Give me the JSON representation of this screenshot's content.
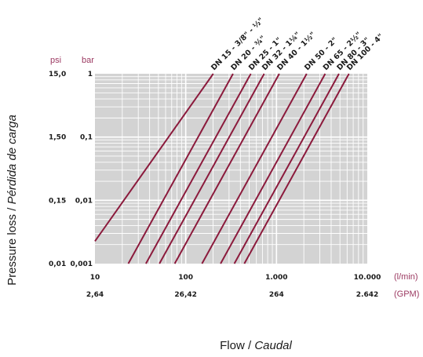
{
  "chart_data": {
    "type": "line",
    "x_scale": "log",
    "y_scale": "log",
    "xlim": [
      10,
      10000
    ],
    "ylim": [
      0.001,
      1
    ],
    "grid": true,
    "xlabel": "Flow",
    "xlabel_italic": "Caudal",
    "ylabel": "Pressure loss",
    "ylabel_italic": "Pérdida de carga",
    "x_unit_primary": "(l/min)",
    "x_unit_secondary": "(GPM)",
    "y_unit_psi": "psi",
    "y_unit_bar": "bar",
    "x_ticks": [
      {
        "value": 10,
        "label": "10",
        "label2": "2,64"
      },
      {
        "value": 100,
        "label": "100",
        "label2": "26,42"
      },
      {
        "value": 1000,
        "label": "1.000",
        "label2": "264"
      },
      {
        "value": 10000,
        "label": "10.000",
        "label2": "2.642"
      }
    ],
    "y_ticks": [
      {
        "value": 1,
        "label_bar": "1",
        "label_psi": "15,0"
      },
      {
        "value": 0.1,
        "label_bar": "0,1",
        "label_psi": "1,50"
      },
      {
        "value": 0.01,
        "label_bar": "0,01",
        "label_psi": "0,15"
      },
      {
        "value": 0.001,
        "label_bar": "0,001",
        "label_psi": "0,01"
      }
    ],
    "series": [
      {
        "name": "DN 15 - 3/8\" - ½\"",
        "x": [
          10,
          201
        ],
        "y": [
          0.00226,
          1
        ]
      },
      {
        "name": "DN 20 - ¾\"",
        "x": [
          23.3,
          332
        ],
        "y": [
          0.001,
          1
        ]
      },
      {
        "name": "DN 25 - 1\"",
        "x": [
          36.4,
          521
        ],
        "y": [
          0.001,
          1
        ]
      },
      {
        "name": "DN 32 - 1¼\"",
        "x": [
          51.3,
          731
        ],
        "y": [
          0.001,
          1
        ]
      },
      {
        "name": "DN 40 - 1½\"",
        "x": [
          75.6,
          1073
        ],
        "y": [
          0.001,
          1
        ]
      },
      {
        "name": "DN 50 - 2\"",
        "x": [
          151,
          2150
        ],
        "y": [
          0.001,
          1
        ]
      },
      {
        "name": "DN 65 - 2½\"",
        "x": [
          242,
          3440
        ],
        "y": [
          0.001,
          1
        ]
      },
      {
        "name": "DN 80 - 3\"",
        "x": [
          343,
          4880
        ],
        "y": [
          0.001,
          1
        ]
      },
      {
        "name": "DN 100 - 4\"",
        "x": [
          442,
          6280
        ],
        "y": [
          0.001,
          1
        ]
      }
    ],
    "colors": {
      "line": "#8b1a3c",
      "accent": "#9c3a62",
      "grid": "#ffffff",
      "plot_bg": "#d3d3d3",
      "text": "#1a1a1a"
    }
  }
}
